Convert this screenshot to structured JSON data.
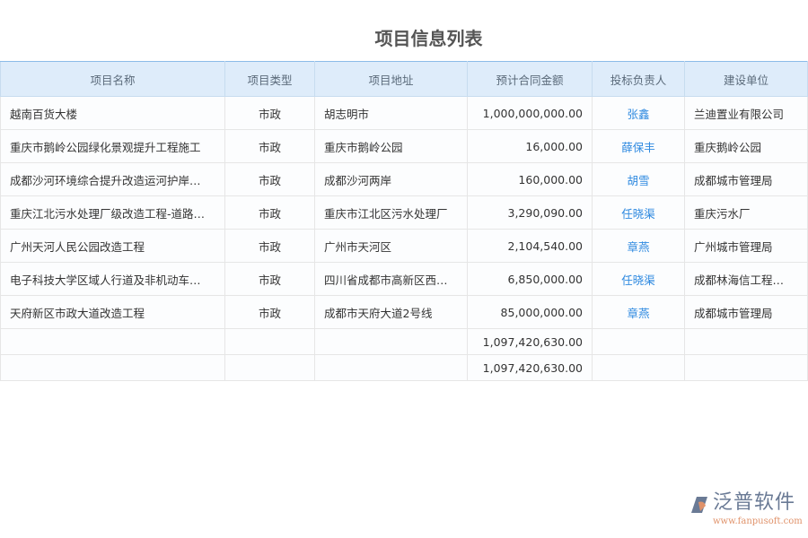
{
  "title": "项目信息列表",
  "columns": [
    "项目名称",
    "项目类型",
    "项目地址",
    "预计合同金额",
    "投标负责人",
    "建设单位"
  ],
  "rows": [
    [
      "越南百货大楼",
      "市政",
      "胡志明市",
      "1,000,000,000.00",
      "张鑫",
      "兰迪置业有限公司"
    ],
    [
      "重庆市鹅岭公园绿化景观提升工程施工",
      "市政",
      "重庆市鹅岭公园",
      "16,000.00",
      "薛保丰",
      "重庆鹅岭公园"
    ],
    [
      "成都沙河环境综合提升改造运河护岸…",
      "市政",
      "成都沙河两岸",
      "160,000.00",
      "胡雪",
      "成都城市管理局"
    ],
    [
      "重庆江北污水处理厂级改造工程-道路…",
      "市政",
      "重庆市江北区污水处理厂",
      "3,290,090.00",
      "任晓渠",
      "重庆污水厂"
    ],
    [
      "广州天河人民公园改造工程",
      "市政",
      "广州市天河区",
      "2,104,540.00",
      "章燕",
      "广州城市管理局"
    ],
    [
      "电子科技大学区域人行道及非机动车…",
      "市政",
      "四川省成都市高新区西…",
      "6,850,000.00",
      "任晓渠",
      "成都林海信工程…"
    ],
    [
      "天府新区市政大道改造工程",
      "市政",
      "成都市天府大道2号线",
      "85,000,000.00",
      "章燕",
      "成都城市管理局"
    ]
  ],
  "totals": [
    "1,097,420,630.00",
    "1,097,420,630.00"
  ],
  "logo": {
    "name": "泛普软件",
    "url": "www.fanpusoft.com"
  },
  "colors": {
    "header_bg": "#deecfa",
    "link": "#2f8ae0"
  }
}
